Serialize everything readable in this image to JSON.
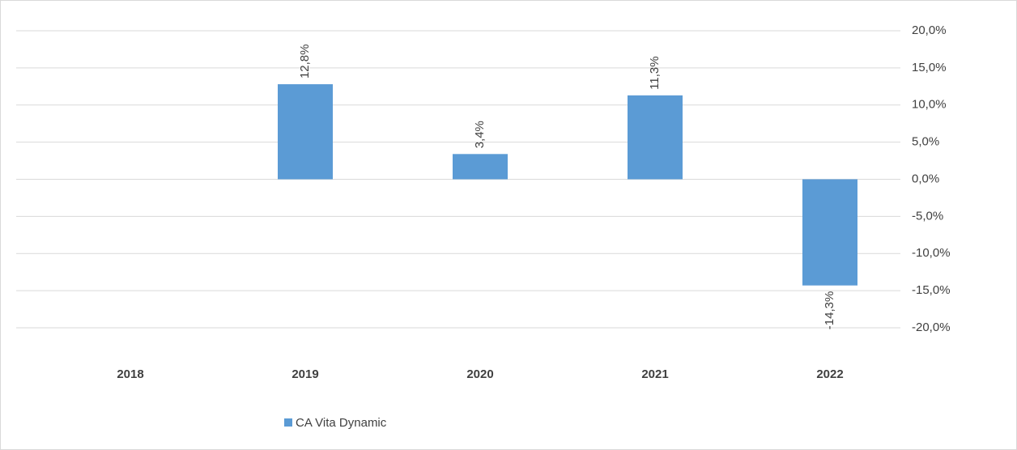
{
  "chart_data": {
    "type": "bar",
    "categories": [
      "2018",
      "2019",
      "2020",
      "2021",
      "2022"
    ],
    "series": [
      {
        "name": "CA Vita Dynamic",
        "color": "#5b9bd5",
        "values": [
          null,
          12.8,
          3.4,
          11.3,
          -14.3
        ],
        "value_labels": [
          null,
          "12,8%",
          "3,4%",
          "11,3%",
          "-14,3%"
        ]
      }
    ],
    "ylim": [
      -20,
      20
    ],
    "yticks": [
      {
        "value": 20,
        "label": "20,0%"
      },
      {
        "value": 15,
        "label": "15,0%"
      },
      {
        "value": 10,
        "label": "10,0%"
      },
      {
        "value": 5,
        "label": "5,0%"
      },
      {
        "value": 0,
        "label": "0,0%"
      },
      {
        "value": -5,
        "label": "-5,0%"
      },
      {
        "value": -10,
        "label": "-10,0%"
      },
      {
        "value": -15,
        "label": "-15,0%"
      },
      {
        "value": -20,
        "label": "-20,0%"
      }
    ],
    "yaxis_position": "right",
    "grid": true,
    "legend": "bottom"
  }
}
